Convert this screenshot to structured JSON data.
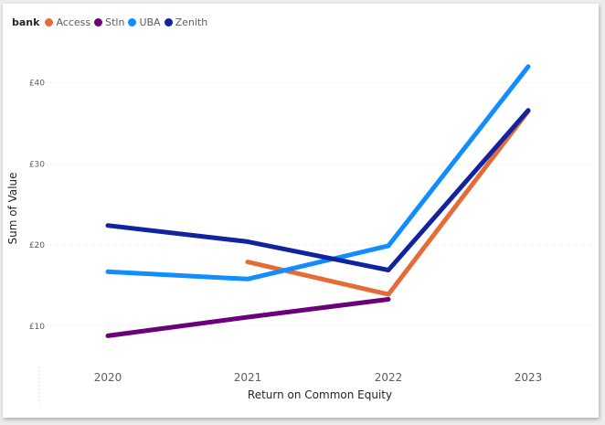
{
  "legend": {
    "title": "bank"
  },
  "chart_data": {
    "type": "line",
    "title": "",
    "xlabel": "Return on Common Equity",
    "ylabel": "Sum of Value",
    "categories": [
      "2020",
      "2021",
      "2022",
      "2023"
    ],
    "y_ticks": [
      {
        "value": 10,
        "label": "£10"
      },
      {
        "value": 20,
        "label": "£20"
      },
      {
        "value": 30,
        "label": "£30"
      },
      {
        "value": 40,
        "label": "£40"
      }
    ],
    "ylim": [
      4,
      50
    ],
    "grid": "horizontal dotted",
    "legend_position": "top-left",
    "series": [
      {
        "name": "Access",
        "color": "#e66c37",
        "values": [
          null,
          17.9,
          13.9,
          36.5
        ]
      },
      {
        "name": "Stln",
        "color": "#6b007b",
        "values": [
          8.8,
          11.1,
          13.3,
          null
        ]
      },
      {
        "name": "UBA",
        "color": "#118dff",
        "values": [
          16.7,
          15.8,
          19.9,
          42.0
        ]
      },
      {
        "name": "Zenith",
        "color": "#12239e",
        "values": [
          22.4,
          20.4,
          16.9,
          36.6
        ]
      }
    ]
  }
}
